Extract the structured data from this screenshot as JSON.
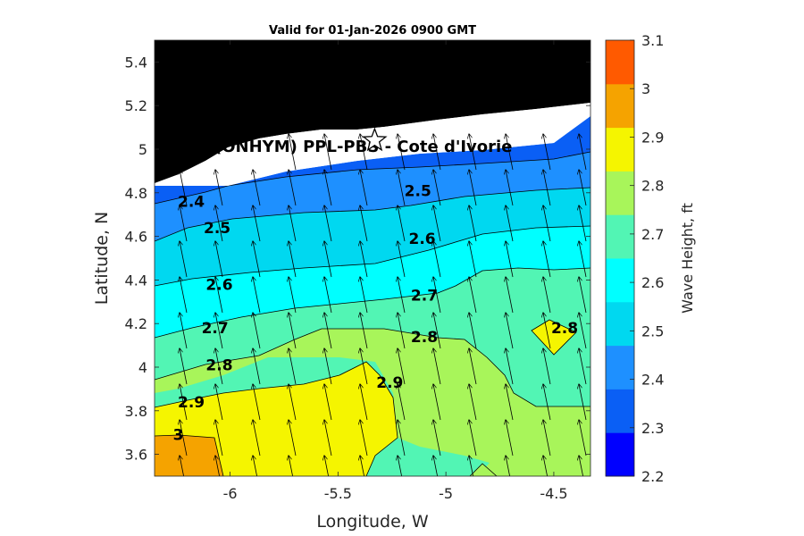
{
  "chart_data": {
    "type": "contour",
    "title": "Valid for 01-Jan-2026 0900 GMT",
    "xlabel": "Longitude, W",
    "ylabel": "Latitude, N",
    "xlim": [
      -6.35,
      -4.33
    ],
    "ylim": [
      3.5,
      5.5
    ],
    "xticks": [
      -6,
      -5.5,
      -5,
      -4.5
    ],
    "xtick_labels": [
      "-6",
      "-5.5",
      "-5",
      "-4.5"
    ],
    "yticks": [
      3.6,
      3.8,
      4,
      4.2,
      4.4,
      4.6,
      4.8,
      5,
      5.2,
      5.4
    ],
    "ytick_labels": [
      "3.6",
      "3.8",
      "4",
      "4.2",
      "4.4",
      "4.6",
      "4.8",
      "5",
      "5.2",
      "5.4"
    ],
    "colorbar": {
      "label": "Wave Height, ft",
      "levels": [
        2.2,
        2.3,
        2.4,
        2.5,
        2.6,
        2.7,
        2.8,
        2.9,
        3.0,
        3.1
      ],
      "tick_labels": [
        "2.2",
        "2.3",
        "2.4",
        "2.5",
        "2.6",
        "2.7",
        "2.8",
        "2.9",
        "3",
        "3.1"
      ],
      "colors": [
        "#0000ff",
        "#0a5ff5",
        "#1e90ff",
        "#00d8f0",
        "#00ffff",
        "#52f5b4",
        "#a8f55a",
        "#f5f500",
        "#f5a300",
        "#ff5a00"
      ]
    },
    "contour_labels": [
      {
        "text": "2.4",
        "lon": -6.18,
        "lat": 4.76
      },
      {
        "text": "2.5",
        "lon": -6.06,
        "lat": 4.64
      },
      {
        "text": "2.5",
        "lon": -5.13,
        "lat": 4.81
      },
      {
        "text": "2.6",
        "lon": -5.11,
        "lat": 4.59
      },
      {
        "text": "2.6",
        "lon": -6.05,
        "lat": 4.38
      },
      {
        "text": "2.7",
        "lon": -5.1,
        "lat": 4.33
      },
      {
        "text": "2.7",
        "lon": -6.07,
        "lat": 4.18
      },
      {
        "text": "2.8",
        "lon": -5.1,
        "lat": 4.14
      },
      {
        "text": "2.8",
        "lon": -6.05,
        "lat": 4.01
      },
      {
        "text": "2.8",
        "lon": -4.45,
        "lat": 4.18
      },
      {
        "text": "2.9",
        "lon": -5.26,
        "lat": 3.93
      },
      {
        "text": "2.9",
        "lon": -6.18,
        "lat": 3.84
      },
      {
        "text": "3",
        "lon": -6.24,
        "lat": 3.69
      }
    ],
    "station": {
      "label": "(ONHYM) PPL-PBS - Cote d'Ivorie",
      "lon": -5.33,
      "lat": 5.04
    },
    "land_color": "#000000"
  }
}
